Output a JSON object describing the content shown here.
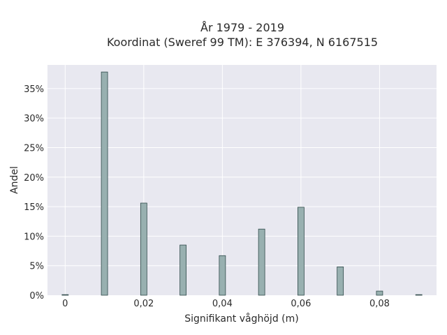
{
  "chart_data": {
    "type": "bar",
    "title_line1": "År 1979 - 2019",
    "title_line2": "Koordinat (Sweref 99 TM): E 376394, N 6167515",
    "xlabel": "Signifikant våghöjd (m)",
    "ylabel": "Andel",
    "x": [
      0,
      0.01,
      0.02,
      0.03,
      0.04,
      0.05,
      0.06,
      0.07,
      0.08,
      0.09
    ],
    "values": [
      0.1,
      37.8,
      15.6,
      8.5,
      6.7,
      11.2,
      14.9,
      4.8,
      0.7,
      0.1
    ],
    "xlim": [
      -0.0045,
      0.0945
    ],
    "ylim": [
      0,
      39
    ],
    "x_ticks": [
      0,
      0.02,
      0.04,
      0.06,
      0.08
    ],
    "x_tick_labels": [
      "0",
      "0,02",
      "0,04",
      "0,06",
      "0,08"
    ],
    "y_ticks": [
      0,
      5,
      10,
      15,
      20,
      25,
      30,
      35
    ],
    "y_tick_labels": [
      "0%",
      "5%",
      "10%",
      "15%",
      "20%",
      "25%",
      "30%",
      "35%"
    ],
    "grid": true,
    "colors": {
      "plot_background": "#e8e8f0",
      "bar_fill": "#98b0b0",
      "bar_stroke": "#2f4a4a",
      "grid": "#ffffff"
    }
  }
}
